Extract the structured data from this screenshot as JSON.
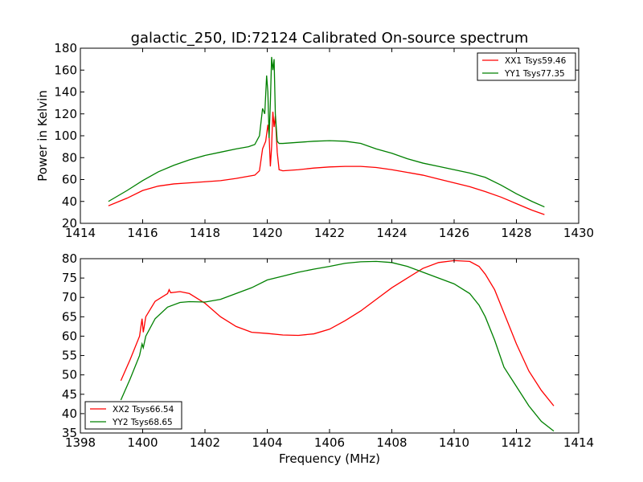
{
  "figure": {
    "title": "galactic_250, ID:72124 Calibrated On-source spectrum"
  },
  "chart_data": [
    {
      "type": "line",
      "title": "galactic_250, ID:72124 Calibrated On-source spectrum",
      "xlabel": "",
      "ylabel": "Power in Kelvin",
      "xlim": [
        1414,
        1430
      ],
      "ylim": [
        20,
        180
      ],
      "xticks": [
        "1414",
        "1416",
        "1418",
        "1420",
        "1422",
        "1424",
        "1426",
        "1428",
        "1430"
      ],
      "yticks": [
        "20",
        "40",
        "60",
        "80",
        "100",
        "120",
        "140",
        "160",
        "180"
      ],
      "legend_position": "top-right",
      "series": [
        {
          "name": "XX1 Tsys59.46",
          "color": "#ff0000",
          "x": [
            1414.9,
            1415.5,
            1416.0,
            1416.5,
            1417.0,
            1417.5,
            1418.0,
            1418.5,
            1419.0,
            1419.4,
            1419.6,
            1419.75,
            1419.85,
            1419.95,
            1420.02,
            1420.06,
            1420.1,
            1420.14,
            1420.18,
            1420.22,
            1420.26,
            1420.32,
            1420.38,
            1420.5,
            1421.0,
            1421.5,
            1422.0,
            1422.5,
            1423.0,
            1423.5,
            1424.0,
            1424.5,
            1425.0,
            1425.5,
            1426.0,
            1426.5,
            1427.0,
            1427.5,
            1428.0,
            1428.5,
            1428.9
          ],
          "y": [
            36,
            43,
            50,
            54,
            56,
            57,
            58,
            59,
            61,
            63,
            64,
            68,
            88,
            95,
            110,
            100,
            72,
            90,
            122,
            108,
            118,
            85,
            69,
            68,
            69,
            70.5,
            71.5,
            72,
            72,
            71,
            69,
            66.5,
            64,
            60.5,
            57,
            53.5,
            49,
            44,
            38,
            32,
            28
          ]
        },
        {
          "name": "YY1 Tsys77.35",
          "color": "#008000",
          "x": [
            1414.9,
            1415.5,
            1416.0,
            1416.5,
            1417.0,
            1417.5,
            1418.0,
            1418.5,
            1419.0,
            1419.4,
            1419.6,
            1419.75,
            1419.85,
            1419.92,
            1419.98,
            1420.02,
            1420.06,
            1420.1,
            1420.14,
            1420.18,
            1420.22,
            1420.26,
            1420.32,
            1420.38,
            1420.5,
            1421.0,
            1421.5,
            1422.0,
            1422.5,
            1423.0,
            1423.5,
            1424.0,
            1424.5,
            1425.0,
            1425.5,
            1426.0,
            1426.5,
            1427.0,
            1427.5,
            1428.0,
            1428.5,
            1428.9
          ],
          "y": [
            40,
            50,
            59,
            67,
            73,
            78,
            82,
            85,
            88,
            90,
            92,
            100,
            125,
            120,
            155,
            140,
            98,
            130,
            172,
            160,
            170,
            120,
            95,
            93,
            93,
            94,
            95,
            95.5,
            95,
            93,
            88,
            84,
            79,
            75,
            72,
            69,
            66,
            62,
            55,
            47,
            40,
            35
          ]
        }
      ]
    },
    {
      "type": "line",
      "title": "",
      "xlabel": "Frequency (MHz)",
      "ylabel": "",
      "xlim": [
        1398,
        1414
      ],
      "ylim": [
        35,
        80
      ],
      "xticks": [
        "1398",
        "1400",
        "1402",
        "1404",
        "1406",
        "1408",
        "1410",
        "1412",
        "1414"
      ],
      "yticks": [
        "35",
        "40",
        "45",
        "50",
        "55",
        "60",
        "65",
        "70",
        "75",
        "80"
      ],
      "legend_position": "bottom-left",
      "series": [
        {
          "name": "XX2 Tsys66.54",
          "color": "#ff0000",
          "x": [
            1399.3,
            1399.6,
            1399.9,
            1399.98,
            1400.02,
            1400.1,
            1400.4,
            1400.8,
            1400.85,
            1400.9,
            1401.2,
            1401.5,
            1402.0,
            1402.5,
            1403.0,
            1403.5,
            1404.0,
            1404.5,
            1405.0,
            1405.5,
            1406.0,
            1406.5,
            1407.0,
            1407.5,
            1408.0,
            1408.5,
            1409.0,
            1409.5,
            1410.0,
            1410.5,
            1410.8,
            1411.0,
            1411.3,
            1411.6,
            1412.0,
            1412.4,
            1412.8,
            1413.2
          ],
          "y": [
            48.5,
            54,
            60,
            64.5,
            61,
            65,
            69,
            71,
            72,
            71.2,
            71.5,
            71,
            68.5,
            65,
            62.5,
            61,
            60.7,
            60.3,
            60.2,
            60.6,
            61.8,
            64,
            66.5,
            69.5,
            72.5,
            75,
            77.5,
            79,
            79.5,
            79.3,
            78,
            76,
            72,
            66,
            58,
            51,
            46,
            42
          ]
        },
        {
          "name": "YY2 Tsys68.65",
          "color": "#008000",
          "x": [
            1399.3,
            1399.6,
            1399.9,
            1399.98,
            1400.02,
            1400.1,
            1400.4,
            1400.8,
            1401.2,
            1401.5,
            1402.0,
            1402.5,
            1403.0,
            1403.5,
            1404.0,
            1404.5,
            1405.0,
            1405.5,
            1406.0,
            1406.5,
            1407.0,
            1407.5,
            1408.0,
            1408.5,
            1409.0,
            1409.5,
            1410.0,
            1410.5,
            1410.8,
            1411.0,
            1411.3,
            1411.6,
            1412.0,
            1412.4,
            1412.8,
            1413.2
          ],
          "y": [
            43.5,
            49,
            55,
            58,
            57,
            60,
            64.5,
            67.5,
            68.7,
            68.9,
            68.8,
            69.5,
            71,
            72.5,
            74.5,
            75.5,
            76.5,
            77.3,
            78,
            78.8,
            79.2,
            79.3,
            79,
            78,
            76.5,
            75,
            73.5,
            71,
            68,
            65,
            59,
            52,
            47,
            42,
            38,
            35.5
          ]
        }
      ]
    }
  ]
}
